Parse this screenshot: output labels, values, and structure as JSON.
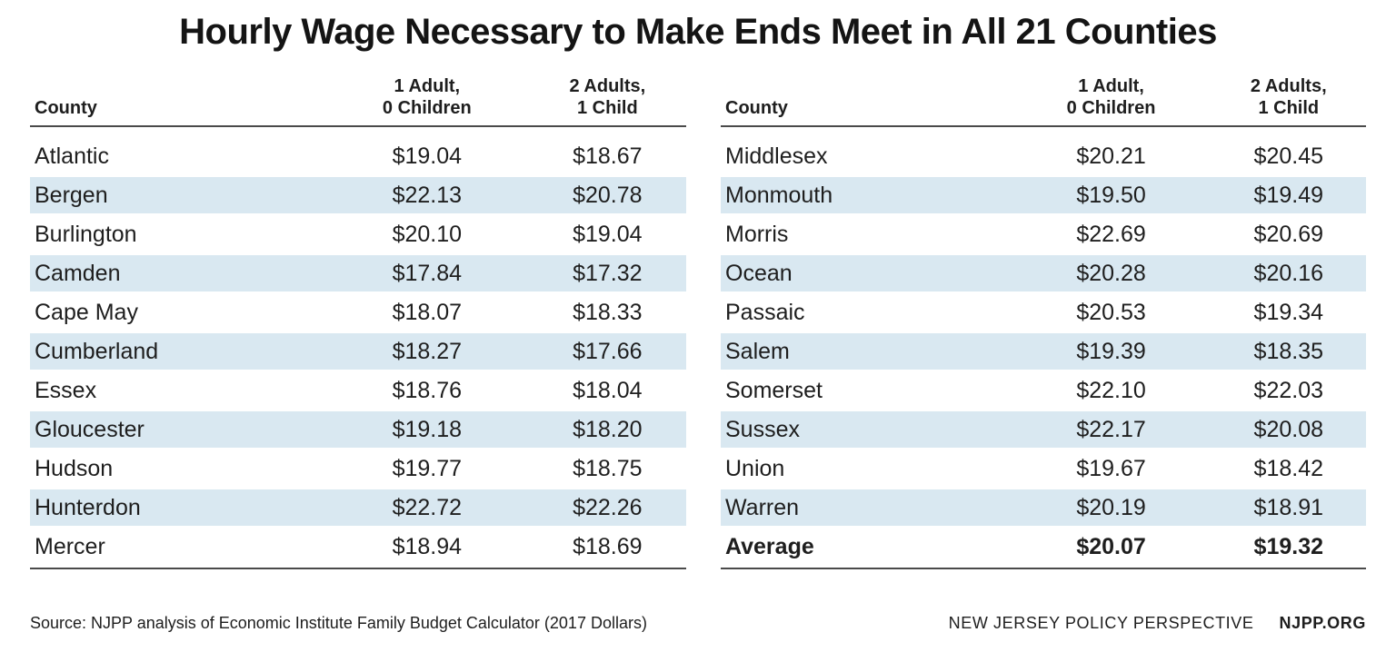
{
  "title": "Hourly Wage Necessary to Make Ends Meet in All 21 Counties",
  "header": {
    "county": "County",
    "col1": "1 Adult,\n0 Children",
    "col2": "2 Adults,\n1 Child"
  },
  "footer": {
    "source": "Source: NJPP analysis of Economic Institute Family Budget Calculator (2017 Dollars)",
    "org": "NEW JERSEY POLICY PERSPECTIVE",
    "site": "NJPP.ORG"
  },
  "colors": {
    "row_shade": "#d9e8f1",
    "rule": "#4a4a4a",
    "text": "#1e1e1e"
  },
  "chart_data": {
    "type": "table",
    "title": "Hourly Wage Necessary to Make Ends Meet in All 21 Counties",
    "columns": [
      "County",
      "1 Adult, 0 Children",
      "2 Adults, 1 Child"
    ],
    "left_rows": [
      [
        "Atlantic",
        "$19.04",
        "$18.67"
      ],
      [
        "Bergen",
        "$22.13",
        "$20.78"
      ],
      [
        "Burlington",
        "$20.10",
        "$19.04"
      ],
      [
        "Camden",
        "$17.84",
        "$17.32"
      ],
      [
        "Cape May",
        "$18.07",
        "$18.33"
      ],
      [
        "Cumberland",
        "$18.27",
        "$17.66"
      ],
      [
        "Essex",
        "$18.76",
        "$18.04"
      ],
      [
        "Gloucester",
        "$19.18",
        "$18.20"
      ],
      [
        "Hudson",
        "$19.77",
        "$18.75"
      ],
      [
        "Hunterdon",
        "$22.72",
        "$22.26"
      ],
      [
        "Mercer",
        "$18.94",
        "$18.69"
      ]
    ],
    "right_rows": [
      [
        "Middlesex",
        "$20.21",
        "$20.45"
      ],
      [
        "Monmouth",
        "$19.50",
        "$19.49"
      ],
      [
        "Morris",
        "$22.69",
        "$20.69"
      ],
      [
        "Ocean",
        "$20.28",
        "$20.16"
      ],
      [
        "Passaic",
        "$20.53",
        "$19.34"
      ],
      [
        "Salem",
        "$19.39",
        "$18.35"
      ],
      [
        "Somerset",
        "$22.10",
        "$22.03"
      ],
      [
        "Sussex",
        "$22.17",
        "$20.08"
      ],
      [
        "Union",
        "$19.67",
        "$18.42"
      ],
      [
        "Warren",
        "$20.19",
        "$18.91"
      ],
      [
        "Average",
        "$20.07",
        "$19.32"
      ]
    ],
    "bold_rows": [
      "Average"
    ],
    "shading": "alternate rows shaded light blue starting with second row",
    "source": "Source: NJPP analysis of Economic Institute Family Budget Calculator (2017 Dollars)"
  }
}
